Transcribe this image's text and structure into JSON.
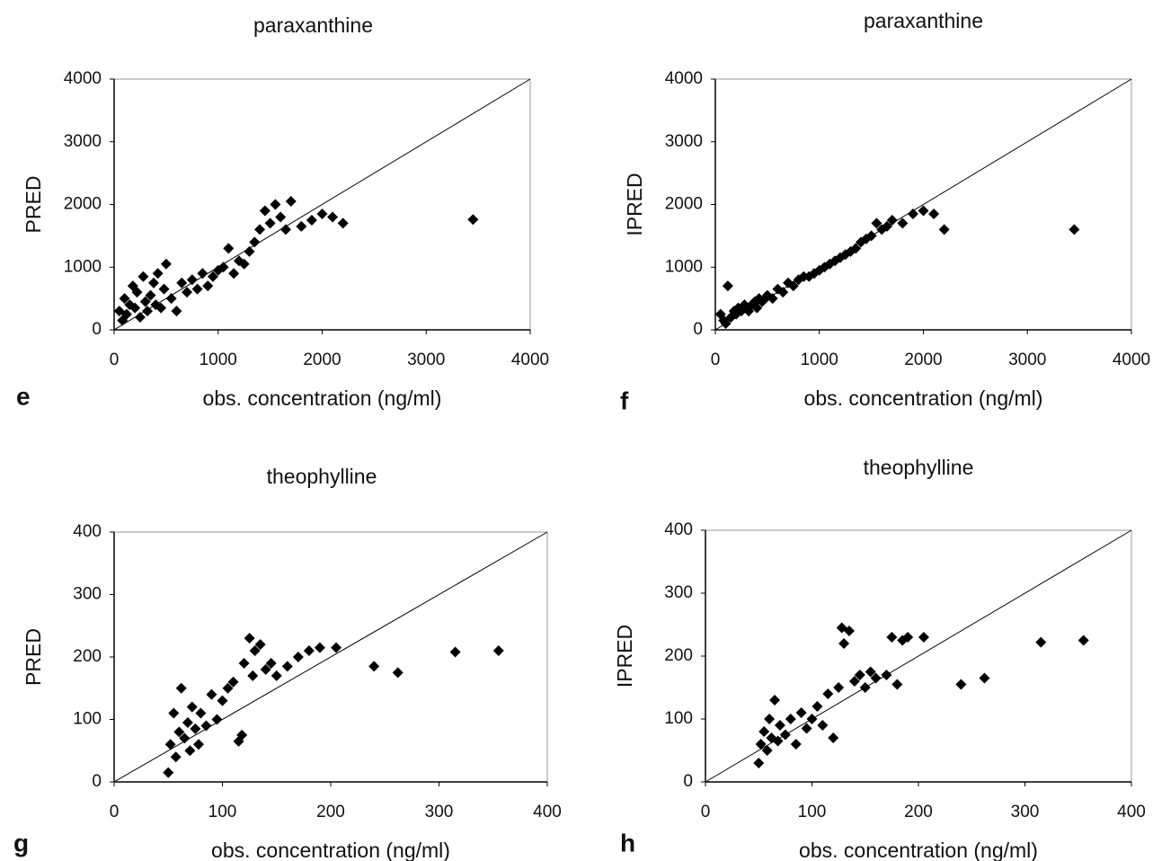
{
  "chart_data": [
    {
      "type": "scatter",
      "title": "paraxanthine",
      "panel_label": "e",
      "xlabel": "obs. concentration (ng/ml)",
      "ylabel": "PRED",
      "xlim": [
        0,
        4000
      ],
      "ylim": [
        0,
        4000
      ],
      "xticks": [
        0,
        1000,
        2000,
        3000,
        4000
      ],
      "yticks": [
        0,
        1000,
        2000,
        3000,
        4000
      ],
      "color": "#000000",
      "marker": "diamond",
      "identity_line": true,
      "x": [
        50,
        80,
        100,
        120,
        150,
        180,
        200,
        220,
        250,
        280,
        300,
        320,
        350,
        380,
        400,
        420,
        450,
        480,
        500,
        550,
        600,
        650,
        700,
        750,
        800,
        850,
        900,
        950,
        1000,
        1050,
        1100,
        1150,
        1200,
        1250,
        1300,
        1350,
        1400,
        1450,
        1500,
        1550,
        1600,
        1650,
        1700,
        1800,
        1900,
        2000,
        2100,
        2200,
        3450
      ],
      "y": [
        300,
        150,
        500,
        250,
        400,
        700,
        350,
        600,
        200,
        850,
        450,
        300,
        550,
        750,
        400,
        900,
        350,
        650,
        1050,
        500,
        300,
        750,
        600,
        800,
        650,
        900,
        700,
        850,
        950,
        1000,
        1300,
        900,
        1100,
        1050,
        1250,
        1400,
        1600,
        1900,
        1700,
        2000,
        1800,
        1600,
        2050,
        1650,
        1750,
        1850,
        1800,
        1700,
        1760
      ]
    },
    {
      "type": "scatter",
      "title": "paraxanthine",
      "panel_label": "f",
      "xlabel": "obs. concentration (ng/ml)",
      "ylabel": "IPRED",
      "xlim": [
        0,
        4000
      ],
      "ylim": [
        0,
        4000
      ],
      "xticks": [
        0,
        1000,
        2000,
        3000,
        4000
      ],
      "yticks": [
        0,
        1000,
        2000,
        3000,
        4000
      ],
      "color": "#000000",
      "marker": "diamond",
      "identity_line": true,
      "x": [
        50,
        80,
        100,
        120,
        150,
        180,
        200,
        220,
        250,
        280,
        300,
        320,
        350,
        380,
        400,
        420,
        450,
        480,
        500,
        550,
        600,
        650,
        700,
        750,
        800,
        850,
        900,
        950,
        1000,
        1050,
        1100,
        1150,
        1200,
        1250,
        1300,
        1350,
        1400,
        1450,
        1500,
        1550,
        1600,
        1650,
        1700,
        1800,
        1900,
        2000,
        2100,
        2200,
        3450
      ],
      "y": [
        250,
        150,
        100,
        700,
        200,
        300,
        250,
        350,
        300,
        400,
        350,
        300,
        400,
        450,
        350,
        500,
        450,
        500,
        550,
        500,
        650,
        600,
        750,
        700,
        800,
        850,
        850,
        900,
        950,
        1000,
        1050,
        1100,
        1150,
        1200,
        1250,
        1300,
        1400,
        1450,
        1500,
        1700,
        1600,
        1650,
        1750,
        1700,
        1850,
        1900,
        1850,
        1600,
        1600
      ]
    },
    {
      "type": "scatter",
      "title": "theophylline",
      "panel_label": "g",
      "xlabel": "obs. concentration (ng/ml)",
      "ylabel": "PRED",
      "xlim": [
        0,
        400
      ],
      "ylim": [
        0,
        400
      ],
      "xticks": [
        0,
        100,
        200,
        300,
        400
      ],
      "yticks": [
        0,
        100,
        200,
        300,
        400
      ],
      "color": "#000000",
      "marker": "diamond",
      "identity_line": true,
      "x": [
        50,
        52,
        55,
        57,
        60,
        62,
        65,
        68,
        70,
        72,
        75,
        78,
        80,
        85,
        90,
        95,
        100,
        105,
        110,
        115,
        118,
        120,
        125,
        128,
        130,
        135,
        140,
        145,
        150,
        160,
        170,
        180,
        190,
        205,
        240,
        262,
        315,
        355
      ],
      "y": [
        15,
        60,
        110,
        40,
        80,
        150,
        70,
        95,
        50,
        120,
        85,
        60,
        110,
        90,
        140,
        100,
        130,
        150,
        160,
        65,
        75,
        190,
        230,
        170,
        210,
        220,
        180,
        190,
        170,
        185,
        200,
        210,
        215,
        215,
        185,
        175,
        208,
        210
      ]
    },
    {
      "type": "scatter",
      "title": "theophylline",
      "panel_label": "h",
      "xlabel": "obs. concentration (ng/ml)",
      "ylabel": "IPRED",
      "xlim": [
        0,
        400
      ],
      "ylim": [
        0,
        400
      ],
      "xticks": [
        0,
        100,
        200,
        300,
        400
      ],
      "yticks": [
        0,
        100,
        200,
        300,
        400
      ],
      "color": "#000000",
      "marker": "diamond",
      "identity_line": true,
      "x": [
        50,
        52,
        55,
        58,
        60,
        62,
        65,
        68,
        70,
        75,
        80,
        85,
        90,
        95,
        100,
        105,
        110,
        115,
        120,
        125,
        128,
        130,
        135,
        140,
        145,
        150,
        155,
        160,
        170,
        175,
        180,
        185,
        190,
        205,
        240,
        262,
        315,
        355
      ],
      "y": [
        30,
        60,
        80,
        50,
        100,
        70,
        130,
        65,
        90,
        75,
        100,
        60,
        110,
        85,
        100,
        120,
        90,
        140,
        70,
        150,
        245,
        220,
        240,
        160,
        170,
        150,
        175,
        165,
        170,
        230,
        155,
        225,
        230,
        230,
        155,
        165,
        222,
        225
      ]
    }
  ]
}
